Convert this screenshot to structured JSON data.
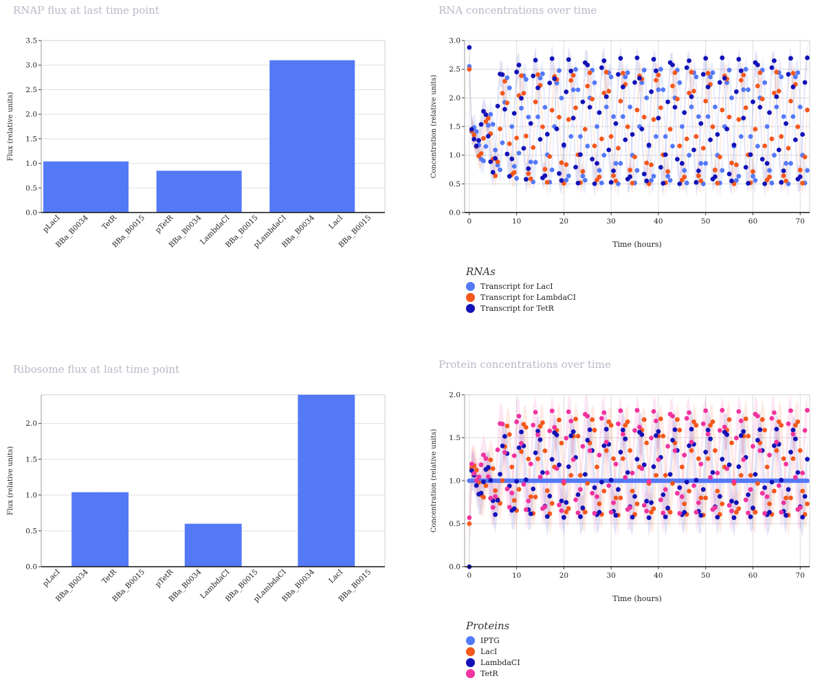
{
  "charts": {
    "rnap": {
      "title": "RNAP flux at last time point",
      "chart_data": {
        "type": "bar",
        "title": "RNAP flux at last time point",
        "ylabel": "Flux (relative units)",
        "categories": [
          "pLacI",
          "BBa_B0034",
          "TetR",
          "BBa_B0015",
          "pTetR",
          "BBa_B0034",
          "LambdaCI",
          "BBa_B0015",
          "pLambdaCI",
          "BBa_B0034",
          "LacI",
          "BBa_B0015"
        ],
        "values": [
          1.04,
          1.04,
          1.04,
          0,
          0.85,
          0.85,
          0.85,
          0,
          3.1,
          3.1,
          3.1,
          0
        ],
        "ylim": [
          0,
          3.5
        ],
        "yticks": [
          "0.0",
          "0.5",
          "1.0",
          "1.5",
          "2.0",
          "2.5",
          "3.0",
          "3.5"
        ],
        "grid": true,
        "color": "#5479f7"
      }
    },
    "ribo": {
      "title": "Ribosome flux at last time point",
      "chart_data": {
        "type": "bar",
        "title": "Ribosome flux at last time point",
        "ylabel": "Flux (relative units)",
        "categories": [
          "pLacI",
          "BBa_B0034",
          "TetR",
          "BBa_B0015",
          "pTetR",
          "BBa_B0034",
          "LambdaCI",
          "BBa_B0015",
          "pLambdaCI",
          "BBa_B0034",
          "LacI",
          "BBa_B0015"
        ],
        "values": [
          0,
          1.04,
          1.04,
          0,
          0,
          0.6,
          0.6,
          0,
          0,
          2.4,
          2.4,
          0
        ],
        "ylim": [
          0,
          2.4
        ],
        "yticks": [
          "0.0",
          "0.5",
          "1.0",
          "1.5",
          "2.0"
        ],
        "grid": true,
        "color": "#5479f7"
      }
    },
    "rna": {
      "title": "RNA concentrations over time",
      "chart_data": {
        "type": "scatter",
        "title": "RNA concentrations over time",
        "xlabel": "Time (hours)",
        "ylabel": "Concentration (relative units)",
        "xlim": [
          -1,
          72
        ],
        "ylim": [
          0,
          3
        ],
        "xticks": [
          "0",
          "10",
          "20",
          "30",
          "40",
          "50",
          "60",
          "70"
        ],
        "yticks": [
          "0.0",
          "0.5",
          "1.0",
          "1.5",
          "2.0",
          "2.5",
          "3.0"
        ],
        "grid": true,
        "legend_title": "RNAs",
        "legend_position": "bottom-left",
        "series": [
          {
            "name": "Transcript for LacI",
            "color": "#5479f7",
            "t0": [
              0,
              2.55
            ],
            "min": 0.5,
            "max": 2.5,
            "period": 3.6,
            "phase": 0.0
          },
          {
            "name": "Transcript for LambdaCI",
            "color": "#f4581c",
            "t0": [
              0,
              2.5
            ],
            "min": 0.5,
            "max": 2.45,
            "period": 3.6,
            "phase": 1.2
          },
          {
            "name": "Transcript for TetR",
            "color": "#1212b8",
            "t0": [
              0,
              2.88
            ],
            "min": 0.5,
            "max": 2.7,
            "period": 3.6,
            "phase": 2.4
          }
        ]
      }
    },
    "protein": {
      "title": "Protein concentrations over time",
      "chart_data": {
        "type": "scatter",
        "title": "Protein concentrations over time",
        "xlabel": "Time (hours)",
        "ylabel": "Concentration (relative units)",
        "xlim": [
          -1,
          72
        ],
        "ylim": [
          0,
          2
        ],
        "xticks": [
          "0",
          "10",
          "20",
          "30",
          "40",
          "50",
          "60",
          "70"
        ],
        "yticks": [
          "0.0",
          "0.5",
          "1.0",
          "1.5",
          "2.0"
        ],
        "grid": true,
        "legend_title": "Proteins",
        "legend_position": "bottom-left",
        "series": [
          {
            "name": "IPTG",
            "color": "#5479f7",
            "constant": 1.0
          },
          {
            "name": "LacI",
            "color": "#f4581c",
            "t0": [
              0,
              0.5
            ],
            "min": 0.6,
            "max": 1.72,
            "period": 3.6,
            "phase": 0.0
          },
          {
            "name": "LambdaCI",
            "color": "#1212b8",
            "t0": [
              0,
              0.0
            ],
            "min": 0.57,
            "max": 1.6,
            "period": 3.6,
            "phase": 1.2
          },
          {
            "name": "TetR",
            "color": "#f0339e",
            "t0": [
              0,
              0.57
            ],
            "min": 0.62,
            "max": 1.82,
            "period": 3.6,
            "phase": 2.4
          }
        ]
      }
    }
  }
}
